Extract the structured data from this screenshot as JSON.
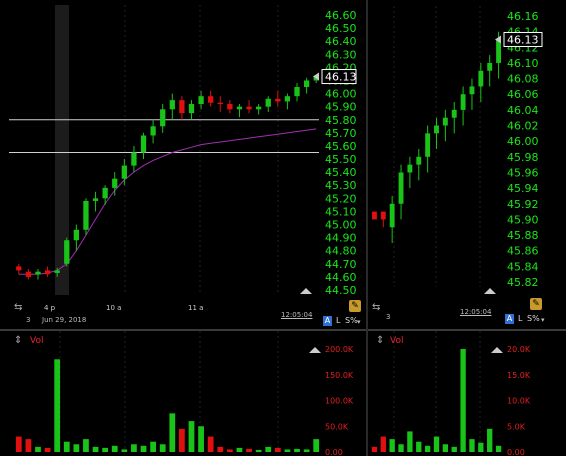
{
  "left": {
    "time_axis": {
      "ticks": [
        "4 p",
        "10 a",
        "11 a"
      ],
      "date": "Jun 29, 2018"
    },
    "price_axis": [
      "46.60",
      "46.50",
      "46.40",
      "46.30",
      "46.20",
      "46.10",
      "46.00",
      "45.90",
      "45.80",
      "45.70",
      "45.60",
      "45.50",
      "45.40",
      "45.30",
      "45.20",
      "45.10",
      "45.00",
      "44.90",
      "44.80",
      "44.70",
      "44.60",
      "44.50"
    ],
    "price_min": 44.5,
    "price_max": 46.6,
    "last_price": "46.13",
    "interval_count": "3",
    "time_stamp": "12:05:04",
    "buttons": {
      "a": "A",
      "l": "L",
      "s": "S%"
    },
    "vol_title": "Vol",
    "vol_axis": [
      "200.0K",
      "150.0K",
      "100.0K",
      "50.0K",
      "0.00"
    ],
    "vol_max": 200000
  },
  "right": {
    "price_axis": [
      "46.16",
      "46.14",
      "46.12",
      "46.10",
      "46.08",
      "46.06",
      "46.04",
      "46.02",
      "46.00",
      "45.98",
      "45.96",
      "45.94",
      "45.92",
      "45.90",
      "45.88",
      "45.86",
      "45.84",
      "45.82"
    ],
    "price_min": 45.82,
    "price_max": 46.16,
    "last_price": "46.13",
    "interval_count": "3",
    "time_stamp": "12:05:04",
    "buttons": {
      "a": "A",
      "l": "L",
      "s": "S%"
    },
    "vol_title": "Vol",
    "vol_axis": [
      "20.0K",
      "15.0K",
      "10.0K",
      "5.0K",
      "0.00"
    ],
    "vol_max": 20000
  },
  "colors": {
    "up": "#19c319",
    "down": "#e01010",
    "axis_text": "#19e619",
    "vol_axis_text": "#e02020",
    "ma": "#a030b0"
  },
  "chart_data": [
    {
      "type": "candlestick",
      "title": "",
      "ylim": [
        44.5,
        46.6
      ],
      "horizontal_lines": [
        45.8,
        45.55
      ],
      "ohlc": [
        [
          44.68,
          44.7,
          44.62,
          44.65
        ],
        [
          44.64,
          44.66,
          44.58,
          44.6
        ],
        [
          44.62,
          44.66,
          44.58,
          44.64
        ],
        [
          44.65,
          44.68,
          44.6,
          44.62
        ],
        [
          44.63,
          44.67,
          44.6,
          44.65
        ],
        [
          44.7,
          44.9,
          44.68,
          44.88
        ],
        [
          44.88,
          45.0,
          44.8,
          44.96
        ],
        [
          44.96,
          45.2,
          44.92,
          45.18
        ],
        [
          45.18,
          45.25,
          45.1,
          45.2
        ],
        [
          45.2,
          45.3,
          45.15,
          45.28
        ],
        [
          45.28,
          45.4,
          45.22,
          45.35
        ],
        [
          45.35,
          45.5,
          45.3,
          45.45
        ],
        [
          45.45,
          45.6,
          45.4,
          45.55
        ],
        [
          45.55,
          45.7,
          45.5,
          45.68
        ],
        [
          45.68,
          45.8,
          45.62,
          45.75
        ],
        [
          45.75,
          45.92,
          45.7,
          45.88
        ],
        [
          45.88,
          46.0,
          45.8,
          45.95
        ],
        [
          45.95,
          45.98,
          45.8,
          45.85
        ],
        [
          45.85,
          45.95,
          45.8,
          45.92
        ],
        [
          45.92,
          46.02,
          45.88,
          45.98
        ],
        [
          45.98,
          46.02,
          45.9,
          45.93
        ],
        [
          45.93,
          45.98,
          45.86,
          45.92
        ],
        [
          45.92,
          45.95,
          45.85,
          45.88
        ],
        [
          45.88,
          45.92,
          45.82,
          45.9
        ],
        [
          45.9,
          45.95,
          45.85,
          45.88
        ],
        [
          45.88,
          45.92,
          45.84,
          45.9
        ],
        [
          45.9,
          45.98,
          45.86,
          45.96
        ],
        [
          45.96,
          46.02,
          45.9,
          45.94
        ],
        [
          45.94,
          46.0,
          45.88,
          45.98
        ],
        [
          45.98,
          46.08,
          45.94,
          46.05
        ],
        [
          46.05,
          46.12,
          46.0,
          46.1
        ],
        [
          46.1,
          46.13,
          46.08,
          46.13
        ]
      ],
      "moving_average": [
        44.62,
        44.62,
        44.62,
        44.63,
        44.65,
        44.7,
        44.8,
        44.92,
        45.04,
        45.16,
        45.26,
        45.34,
        45.4,
        45.45,
        45.49,
        45.52,
        45.55,
        45.57,
        45.59,
        45.61,
        45.62,
        45.63,
        45.64,
        45.65,
        45.66,
        45.67,
        45.68,
        45.69,
        45.7,
        45.71,
        45.72,
        45.73
      ],
      "volume": [
        30000,
        25000,
        10000,
        8000,
        180000,
        20000,
        15000,
        25000,
        10000,
        8000,
        12000,
        5000,
        15000,
        12000,
        20000,
        15000,
        75000,
        45000,
        60000,
        50000,
        30000,
        10000,
        5000,
        8000,
        6000,
        4000,
        10000,
        8000,
        5000,
        6000,
        5000,
        25000
      ]
    },
    {
      "type": "candlestick",
      "title": "",
      "ylim": [
        45.82,
        46.16
      ],
      "ohlc": [
        [
          45.91,
          45.91,
          45.9,
          45.9
        ],
        [
          45.91,
          45.91,
          45.89,
          45.9
        ],
        [
          45.89,
          45.93,
          45.87,
          45.92
        ],
        [
          45.92,
          45.97,
          45.9,
          45.96
        ],
        [
          45.96,
          45.98,
          45.94,
          45.97
        ],
        [
          45.97,
          45.99,
          45.95,
          45.98
        ],
        [
          45.98,
          46.02,
          45.96,
          46.01
        ],
        [
          46.01,
          46.03,
          45.99,
          46.02
        ],
        [
          46.02,
          46.04,
          46.0,
          46.03
        ],
        [
          46.03,
          46.05,
          46.01,
          46.04
        ],
        [
          46.04,
          46.07,
          46.02,
          46.06
        ],
        [
          46.06,
          46.08,
          46.04,
          46.07
        ],
        [
          46.07,
          46.1,
          46.05,
          46.09
        ],
        [
          46.09,
          46.11,
          46.07,
          46.1
        ],
        [
          46.1,
          46.14,
          46.08,
          46.13
        ]
      ],
      "volume": [
        1000,
        3000,
        2500,
        1500,
        4000,
        2000,
        1200,
        3000,
        1500,
        1000,
        20000,
        2500,
        1800,
        4500,
        1200
      ]
    }
  ]
}
